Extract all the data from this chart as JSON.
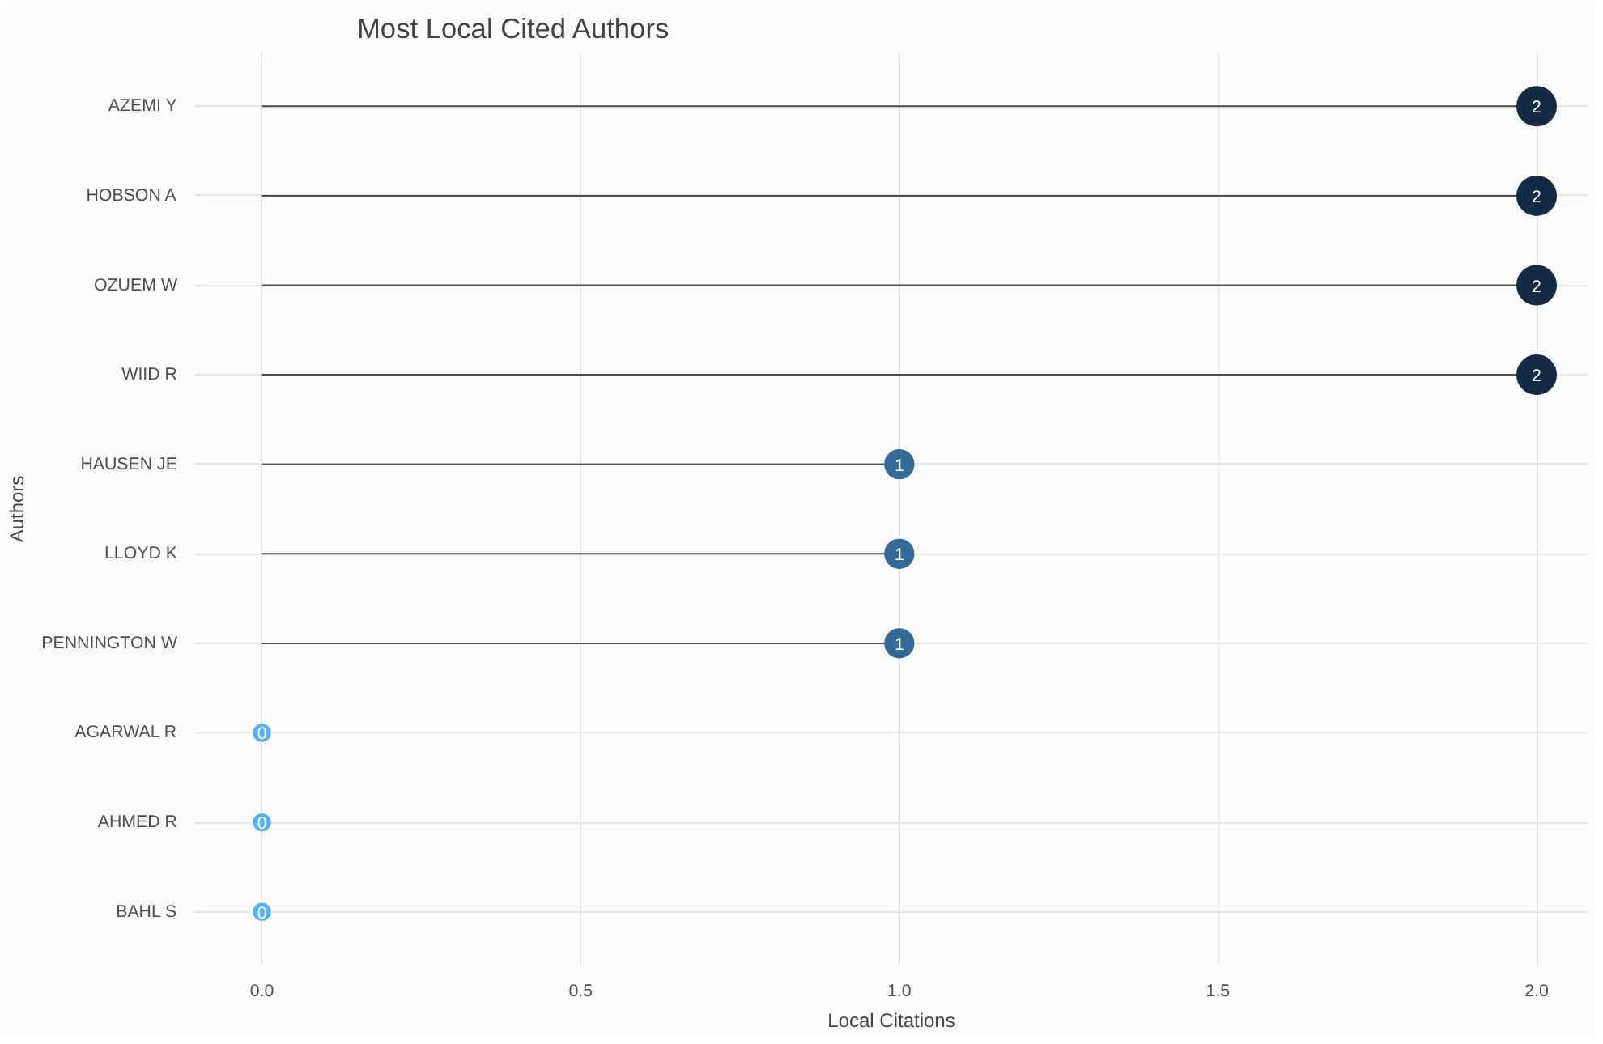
{
  "chart_data": {
    "type": "lollipop",
    "title": "Most Local Cited Authors",
    "xlabel": "Local Citations",
    "ylabel": "Authors",
    "orientation": "horizontal",
    "categories": [
      "AZEMI Y",
      "HOBSON A",
      "OZUEM W",
      "WIID R",
      "HAUSEN JE",
      "LLOYD K",
      "PENNINGTON W",
      "AGARWAL R",
      "AHMED R",
      "BAHL S"
    ],
    "values": [
      2,
      2,
      2,
      2,
      1,
      1,
      1,
      0,
      0,
      0
    ],
    "colors": [
      "#132b43",
      "#132b43",
      "#132b43",
      "#132b43",
      "#336a98",
      "#336a98",
      "#336a98",
      "#56b1f7",
      "#56b1f7",
      "#56b1f7"
    ],
    "xlim": [
      -0.105,
      2.08
    ],
    "xticks": [
      {
        "value": 0,
        "label": "0.0"
      },
      {
        "value": 0.5,
        "label": "0.5"
      },
      {
        "value": 1,
        "label": "1.0"
      },
      {
        "value": 1.5,
        "label": "1.5"
      },
      {
        "value": 2,
        "label": "2.0"
      }
    ],
    "sizes": [
      1,
      1,
      1,
      1,
      0.54,
      0.54,
      0.54,
      0.18,
      0.18,
      0.18
    ],
    "data_labels": true,
    "grid": true
  }
}
